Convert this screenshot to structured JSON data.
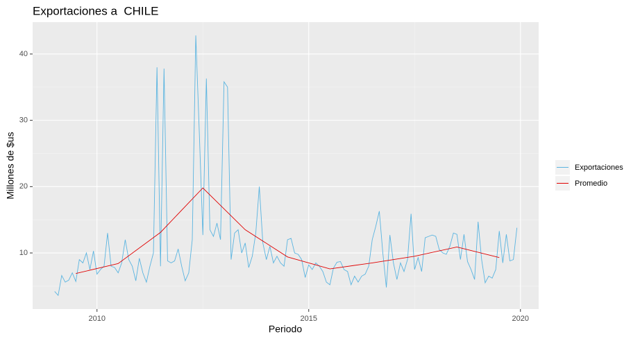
{
  "chart_data": {
    "type": "line",
    "title": "Exportaciones a  CHILE",
    "x_label": "Periodo",
    "y_label": "Millones de $us",
    "xlim": [
      2008.48,
      2020.43
    ],
    "ylim": [
      1.54,
      44.8
    ],
    "xticks": [
      2010,
      2015,
      2020
    ],
    "yticks": [
      10,
      20,
      30,
      40
    ],
    "grid": true,
    "legend": "right",
    "series": [
      {
        "name": "Exportaciones",
        "color": "#5ab4e0",
        "x": [
          2009,
          2009.083,
          2009.167,
          2009.25,
          2009.333,
          2009.417,
          2009.5,
          2009.583,
          2009.667,
          2009.75,
          2009.833,
          2009.917,
          2010,
          2010.083,
          2010.167,
          2010.25,
          2010.333,
          2010.417,
          2010.5,
          2010.583,
          2010.667,
          2010.75,
          2010.833,
          2010.917,
          2011,
          2011.083,
          2011.167,
          2011.25,
          2011.333,
          2011.417,
          2011.5,
          2011.583,
          2011.667,
          2011.75,
          2011.833,
          2011.917,
          2012,
          2012.083,
          2012.167,
          2012.25,
          2012.333,
          2012.417,
          2012.5,
          2012.583,
          2012.667,
          2012.75,
          2012.833,
          2012.917,
          2013,
          2013.083,
          2013.167,
          2013.25,
          2013.333,
          2013.417,
          2013.5,
          2013.583,
          2013.667,
          2013.75,
          2013.833,
          2013.917,
          2014,
          2014.083,
          2014.167,
          2014.25,
          2014.333,
          2014.417,
          2014.5,
          2014.583,
          2014.667,
          2014.75,
          2014.833,
          2014.917,
          2015,
          2015.083,
          2015.167,
          2015.25,
          2015.333,
          2015.417,
          2015.5,
          2015.583,
          2015.667,
          2015.75,
          2015.833,
          2015.917,
          2016,
          2016.083,
          2016.167,
          2016.25,
          2016.333,
          2016.417,
          2016.5,
          2016.583,
          2016.667,
          2016.75,
          2016.833,
          2016.917,
          2017,
          2017.083,
          2017.167,
          2017.25,
          2017.333,
          2017.417,
          2017.5,
          2017.583,
          2017.667,
          2017.75,
          2017.833,
          2017.917,
          2018,
          2018.083,
          2018.167,
          2018.25,
          2018.333,
          2018.417,
          2018.5,
          2018.583,
          2018.667,
          2018.75,
          2018.833,
          2018.917,
          2019,
          2019.083,
          2019.167,
          2019.25,
          2019.333,
          2019.417,
          2019.5,
          2019.583,
          2019.667,
          2019.75,
          2019.833,
          2019.917
        ],
        "values": [
          4.2,
          3.6,
          6.6,
          5.6,
          5.9,
          7.0,
          5.7,
          9.0,
          8.5,
          10.0,
          7.5,
          10.3,
          6.8,
          7.5,
          8.0,
          13.0,
          8.0,
          7.8,
          7.0,
          8.5,
          12.0,
          9.0,
          8.0,
          5.8,
          9.2,
          7.0,
          5.6,
          8.0,
          10.0,
          38.0,
          8.0,
          37.8,
          8.8,
          8.5,
          8.8,
          10.6,
          8.0,
          5.8,
          7.0,
          12.0,
          42.8,
          28.0,
          12.7,
          36.3,
          13.5,
          12.5,
          14.5,
          12.0,
          35.8,
          35.0,
          9.0,
          13.0,
          13.5,
          10.0,
          11.5,
          7.8,
          9.5,
          13.0,
          20.0,
          11.5,
          9.0,
          11.0,
          8.5,
          9.5,
          8.5,
          8.0,
          12.0,
          12.2,
          10.0,
          9.8,
          9.0,
          6.3,
          8.2,
          7.5,
          8.5,
          8.0,
          7.2,
          5.6,
          5.2,
          7.7,
          8.6,
          8.7,
          7.5,
          7.2,
          5.2,
          6.5,
          5.6,
          6.5,
          6.8,
          8.0,
          12.0,
          14.0,
          16.3,
          10.0,
          4.8,
          12.7,
          8.5,
          6.0,
          8.5,
          7.2,
          9.0,
          15.9,
          7.5,
          9.3,
          7.2,
          12.3,
          12.5,
          12.7,
          12.5,
          10.5,
          10.0,
          9.8,
          11.0,
          13.0,
          12.8,
          9.0,
          12.8,
          8.7,
          7.5,
          6.0,
          14.7,
          9.0,
          5.5,
          6.5,
          6.2,
          7.5,
          13.3,
          8.5,
          12.8,
          8.8,
          9.0,
          13.8
        ]
      },
      {
        "name": "Promedio",
        "color": "#e00000",
        "x": [
          2009.5,
          2010.5,
          2011.5,
          2012.5,
          2013.5,
          2014.5,
          2015.5,
          2016.5,
          2017.5,
          2018.5,
          2019.5
        ],
        "values": [
          6.9,
          8.4,
          13.1,
          19.8,
          13.5,
          9.4,
          7.6,
          8.5,
          9.5,
          10.9,
          9.3
        ]
      }
    ]
  }
}
